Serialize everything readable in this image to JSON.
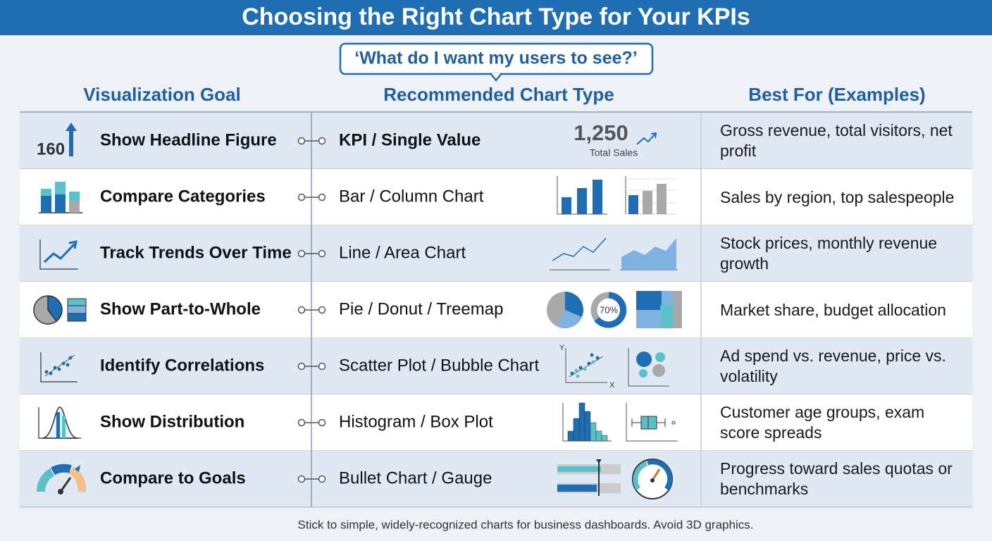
{
  "header": {
    "title": "Choosing the Right Chart Type for Your KPIs",
    "question": "‘What do I want my users to see?’"
  },
  "table": {
    "columns": [
      "Visualization Goal",
      "Recommended Chart Type",
      "Best For (Examples)"
    ],
    "rows": [
      {
        "goal": "Show Headline Figure",
        "chart": "KPI / Single Value",
        "examples": "Gross revenue, total visitors, net profit",
        "icon_text": "160",
        "preview_value": "1,250",
        "preview_caption": "Total Sales"
      },
      {
        "goal": "Compare Categories",
        "chart": "Bar / Column Chart",
        "examples": "Sales by region, top salespeople"
      },
      {
        "goal": "Track Trends Over Time",
        "chart": "Line / Area Chart",
        "examples": "Stock prices, monthly revenue growth"
      },
      {
        "goal": "Show Part-to-Whole",
        "chart": "Pie / Donut / Treemap",
        "examples": "Market share, budget allocation",
        "preview_label": "70%"
      },
      {
        "goal": "Identify Correlations",
        "chart": "Scatter Plot / Bubble Chart",
        "examples": "Ad spend vs. revenue, price vs. volatility",
        "axis_y": "Y",
        "axis_x": "X"
      },
      {
        "goal": "Show Distribution",
        "chart": "Histogram / Box Plot",
        "examples": "Customer age groups, exam score spreads"
      },
      {
        "goal": "Compare to Goals",
        "chart": "Bullet Chart / Gauge",
        "examples": "Progress toward sales quotas or benchmarks"
      }
    ]
  },
  "footer": "Stick to simple, widely-recognized charts for business dashboards. Avoid 3D graphics."
}
